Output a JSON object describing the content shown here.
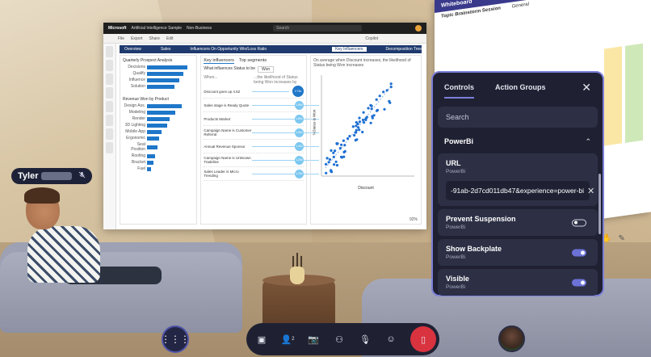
{
  "participant": {
    "name": "Tyler",
    "mic_icon": "mic-off-icon"
  },
  "powerbi_window": {
    "app": "Microsoft",
    "title": "Artificial Intelligence Sample",
    "tag": "Non-Business",
    "search_placeholder": "Search",
    "toolbar": [
      "File",
      "Export",
      "Share",
      "Edit"
    ],
    "copilot_label": "Copilot",
    "tabs": [
      "Overview",
      "Sales",
      "Influencers On Opportunity Win/Loss Ratio",
      "Key Influencers",
      "Decomposition Tree"
    ],
    "left_chart_title": "Quarterly Prospect Analysis",
    "left_bars": [
      {
        "label": "Decisions",
        "value": 0.9
      },
      {
        "label": "Qualify",
        "value": 0.8
      },
      {
        "label": "Influence",
        "value": 0.72
      },
      {
        "label": "Solution",
        "value": 0.6
      }
    ],
    "left_bottom_title": "Revenue Won by Product",
    "left_bottom_bars": [
      {
        "label": "Design Ass.",
        "value": 0.85
      },
      {
        "label": "Modeling",
        "value": 0.7
      },
      {
        "label": "Render",
        "value": 0.55
      },
      {
        "label": "3D Lighting",
        "value": 0.5
      },
      {
        "label": "Mobile App",
        "value": 0.35
      },
      {
        "label": "Ergonomic",
        "value": 0.3
      },
      {
        "label": "Seat Position",
        "value": 0.25
      },
      {
        "label": "Roofing",
        "value": 0.2
      },
      {
        "label": "Bracket",
        "value": 0.15
      },
      {
        "label": "Fuel",
        "value": 0.1
      }
    ],
    "mid_title": "Key influencers",
    "mid_tab2": "Top segments",
    "mid_question": "What influences Status to be",
    "mid_dropdown": "Won",
    "mid_header_left": "When...",
    "mid_header_right": "...the likelihood of Status being Won increases by",
    "influencers": [
      {
        "label": "Discount goes up 4.62",
        "value": "2.76x"
      },
      {
        "label": "Sales stage is Ready Quote",
        "value": "1.85x"
      },
      {
        "label": "Products Market",
        "value": "1.80x"
      },
      {
        "label": "Campaign Name is Customer Referral",
        "value": "1.50x"
      },
      {
        "label": "Annual Revenue Sponsor",
        "value": "1.40x"
      },
      {
        "label": "Campaign Name is Unknown Tradeline",
        "value": "1.25x"
      },
      {
        "label": "Sales Leader is Micro Trending",
        "value": "1.25x"
      }
    ],
    "right_title": "On average when Discount increases, the likelihood of Status being Won increases",
    "right_xlabel": "Discount",
    "right_ylabel": "%Status is Won",
    "zoom": "92%"
  },
  "whiteboard": {
    "title": "Whiteboard",
    "session": "Topic Brainstorm Session",
    "tab2": "General"
  },
  "controls_panel": {
    "tabs": {
      "controls": "Controls",
      "action_groups": "Action Groups"
    },
    "search_placeholder": "Search",
    "section": "PowerBi",
    "url": {
      "title": "URL",
      "sub": "PowerBi",
      "value": "-91ab-2d7cd011db47&experience=power-bi"
    },
    "prevent_suspension": {
      "title": "Prevent Suspension",
      "sub": "PowerBi",
      "on": false
    },
    "show_backplate": {
      "title": "Show Backplate",
      "sub": "PowerBi",
      "on": true
    },
    "visible": {
      "title": "Visible",
      "sub": "PowerBi",
      "on": true
    }
  },
  "bottom_bar": {
    "participants_count": "2"
  }
}
